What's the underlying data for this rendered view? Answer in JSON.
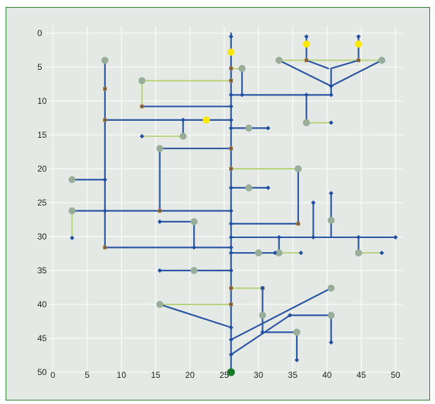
{
  "axis": {
    "y_ticks": [
      0,
      5,
      10,
      15,
      20,
      25,
      30,
      35,
      40,
      45,
      50
    ],
    "x_ticks": [
      0,
      5,
      10,
      15,
      20,
      25,
      30,
      35,
      40,
      45,
      50
    ],
    "x_range": [
      -1,
      51
    ],
    "y_range": [
      -1,
      51
    ]
  },
  "colors": {
    "background": "#e4e9e6",
    "frame": "#2e7d32",
    "pipe": "#2a55a3",
    "service_line": "#b9d47e",
    "junction": "#1f4fa0",
    "consumer": "#98ae98",
    "tap": "#ffe800",
    "valve": "#7a5a3a",
    "source": "#1b7a2a"
  },
  "network": {
    "pipes": [
      [
        26,
        0,
        26,
        50
      ],
      [
        7.6,
        4,
        7.6,
        31.6
      ],
      [
        2.8,
        21.6,
        7.6,
        21.6
      ],
      [
        2.8,
        26.2,
        26,
        26.2
      ],
      [
        7.6,
        31.6,
        26,
        31.6
      ],
      [
        7.6,
        12.8,
        26,
        12.8
      ],
      [
        19,
        12.8,
        19,
        15.2
      ],
      [
        13,
        10.8,
        26,
        10.8
      ],
      [
        26,
        9.1,
        40.6,
        9.1
      ],
      [
        27.6,
        5.2,
        27.6,
        9.1
      ],
      [
        37,
        9.1,
        37,
        13.2
      ],
      [
        26,
        14,
        31.4,
        14
      ],
      [
        15.6,
        17,
        26,
        17
      ],
      [
        15.6,
        17,
        15.6,
        26.2
      ],
      [
        26,
        22.8,
        31.4,
        22.8
      ],
      [
        26,
        28.1,
        35.8,
        28.1
      ],
      [
        35.8,
        20,
        35.8,
        28.1
      ],
      [
        26,
        30.1,
        50,
        30.1
      ],
      [
        33,
        30.1,
        33,
        32.4
      ],
      [
        38,
        25,
        38,
        30.1
      ],
      [
        40.6,
        23.6,
        40.6,
        30.1
      ],
      [
        44.6,
        30.1,
        44.6,
        32.4
      ],
      [
        26,
        32.4,
        32.4,
        32.4
      ],
      [
        15.6,
        27.8,
        20.6,
        27.8
      ],
      [
        20.6,
        27.8,
        20.6,
        31.6
      ],
      [
        15.6,
        35,
        26,
        35
      ],
      [
        15.6,
        40,
        26,
        43.4
      ],
      [
        26,
        45.2,
        40.6,
        37.6
      ],
      [
        26,
        47.4,
        34.6,
        41.6
      ],
      [
        30.6,
        37.6,
        30.6,
        44.1
      ],
      [
        30.6,
        44.1,
        35.6,
        44.1
      ],
      [
        35.6,
        44.1,
        35.6,
        48.2
      ],
      [
        40.6,
        41.6,
        40.6,
        45.6
      ],
      [
        34.6,
        41.6,
        40.6,
        41.6
      ],
      [
        40.6,
        5.2,
        40.6,
        9.1
      ],
      [
        33,
        4,
        40.6,
        7.8
      ],
      [
        48,
        4,
        40.6,
        7.8
      ],
      [
        37,
        0.5,
        37,
        4
      ],
      [
        44.6,
        0.5,
        44.6,
        4
      ],
      [
        37,
        4,
        40.2,
        5.2
      ],
      [
        44.6,
        4,
        40.6,
        5.2
      ]
    ],
    "service_lines": [
      [
        7.6,
        4,
        7.6,
        8.2
      ],
      [
        7.6,
        12.8,
        7.6,
        31.6
      ],
      [
        2.8,
        26.2,
        2.8,
        30.2
      ],
      [
        13,
        7,
        26,
        7
      ],
      [
        13,
        7,
        13,
        10.8
      ],
      [
        13,
        15.2,
        19,
        15.2
      ],
      [
        26,
        5.2,
        27.6,
        5.2
      ],
      [
        33,
        4,
        48,
        4
      ],
      [
        37,
        13.2,
        40.6,
        13.2
      ],
      [
        28.6,
        14,
        31.4,
        14
      ],
      [
        15.6,
        26.2,
        15.6,
        26.2
      ],
      [
        26,
        20,
        35.8,
        20
      ],
      [
        35.8,
        20,
        35.8,
        28.1
      ],
      [
        28.6,
        22.8,
        31.4,
        22.8
      ],
      [
        40.6,
        23.6,
        40.6,
        27.6
      ],
      [
        33,
        32.4,
        36.2,
        32.4
      ],
      [
        44.6,
        32.4,
        48,
        32.4
      ],
      [
        26,
        32.4,
        32.4,
        32.4
      ],
      [
        15.6,
        27.8,
        20.6,
        27.8
      ],
      [
        15.6,
        35,
        20.6,
        35
      ],
      [
        15.6,
        40,
        26,
        40
      ],
      [
        26,
        37.6,
        30.6,
        37.6
      ],
      [
        30.6,
        37.6,
        30.6,
        41.6
      ],
      [
        40.6,
        41.6,
        40.6,
        45.6
      ]
    ],
    "junctions": [
      [
        26,
        0.5
      ],
      [
        26,
        9.1
      ],
      [
        26,
        10.8
      ],
      [
        26,
        12.8
      ],
      [
        26,
        14
      ],
      [
        26,
        22.8
      ],
      [
        26,
        26.2
      ],
      [
        26,
        28.1
      ],
      [
        26,
        30.1
      ],
      [
        26,
        31.6
      ],
      [
        26,
        32.4
      ],
      [
        26,
        35
      ],
      [
        26,
        43.4
      ],
      [
        26,
        45.2
      ],
      [
        26,
        47.4
      ],
      [
        37,
        0.5
      ],
      [
        44.6,
        0.5
      ],
      [
        7.6,
        21.6
      ],
      [
        7.6,
        26.2
      ],
      [
        2.8,
        30.2
      ],
      [
        19,
        12.8
      ],
      [
        13,
        15.2
      ],
      [
        27.6,
        9.1
      ],
      [
        37,
        9.1
      ],
      [
        40.6,
        9.1
      ],
      [
        40.6,
        13.2
      ],
      [
        31.4,
        14
      ],
      [
        31.4,
        22.8
      ],
      [
        15.6,
        27.8
      ],
      [
        20.6,
        31.6
      ],
      [
        33,
        30.1
      ],
      [
        38,
        25
      ],
      [
        38,
        30.1
      ],
      [
        40.6,
        23.6
      ],
      [
        44.6,
        30.1
      ],
      [
        50,
        30.1
      ],
      [
        32.4,
        32.4
      ],
      [
        36.2,
        32.4
      ],
      [
        48,
        32.4
      ],
      [
        15.6,
        35
      ],
      [
        30.6,
        44.1
      ],
      [
        35.6,
        48.2
      ],
      [
        40.6,
        45.6
      ],
      [
        34.6,
        41.6
      ],
      [
        30.6,
        37.6
      ],
      [
        40.6,
        7.8
      ]
    ],
    "consumers": [
      [
        7.6,
        4
      ],
      [
        2.8,
        21.6
      ],
      [
        2.8,
        26.2
      ],
      [
        13,
        7
      ],
      [
        19,
        15.2
      ],
      [
        15.6,
        17
      ],
      [
        27.6,
        5.2
      ],
      [
        33,
        4
      ],
      [
        48,
        4
      ],
      [
        37,
        13.2
      ],
      [
        28.6,
        14
      ],
      [
        35.8,
        20
      ],
      [
        28.6,
        22.8
      ],
      [
        40.6,
        27.6
      ],
      [
        20.6,
        27.8
      ],
      [
        33,
        32.4
      ],
      [
        44.6,
        32.4
      ],
      [
        30,
        32.4
      ],
      [
        20.6,
        35
      ],
      [
        15.6,
        40
      ],
      [
        40.6,
        37.6
      ],
      [
        30.6,
        41.6
      ],
      [
        35.6,
        44.1
      ],
      [
        40.6,
        41.6
      ]
    ],
    "taps": [
      [
        26,
        2.8
      ],
      [
        22.4,
        12.8
      ],
      [
        37,
        1.6
      ],
      [
        44.6,
        1.6
      ]
    ],
    "valves": [
      [
        26,
        5.2
      ],
      [
        26,
        7
      ],
      [
        26,
        17
      ],
      [
        26,
        20
      ],
      [
        26,
        37.6
      ],
      [
        26,
        40
      ],
      [
        37,
        4
      ],
      [
        44.6,
        4
      ],
      [
        30.6,
        37.6
      ],
      [
        7.6,
        8.2
      ],
      [
        7.6,
        12.8
      ],
      [
        13,
        10.8
      ],
      [
        15.6,
        26.2
      ],
      [
        7.6,
        31.6
      ],
      [
        35.8,
        28.1
      ]
    ],
    "source": [
      26,
      50
    ]
  }
}
